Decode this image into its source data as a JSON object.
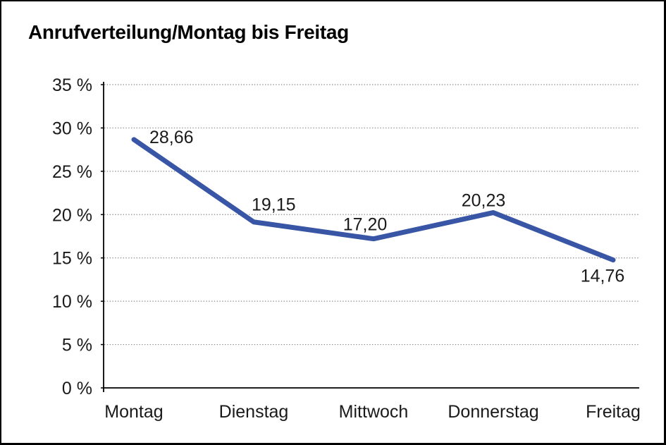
{
  "window": {
    "background_color": "#ffffff",
    "border_color": "#000000"
  },
  "chart_data": {
    "type": "line",
    "title": "Anrufverteilung/Montag bis Freitag",
    "categories": [
      "Montag",
      "Dienstag",
      "Mittwoch",
      "Donnerstag",
      "Freitag"
    ],
    "values": [
      28.66,
      19.15,
      17.2,
      20.23,
      14.76
    ],
    "value_labels": [
      "28,66",
      "19,15",
      "17,20",
      "20,23",
      "14,76"
    ],
    "ytick_values": [
      0,
      5,
      10,
      15,
      20,
      25,
      30,
      35
    ],
    "ytick_labels": [
      "0 %",
      "5 %",
      "10 %",
      "15 %",
      "20 %",
      "25 %",
      "30 %",
      "35 %"
    ],
    "ylim": [
      0,
      35
    ],
    "xlabel": "",
    "ylabel": "",
    "legend": "none",
    "grid": "horizontal-dotted",
    "line_color": "#3856A5",
    "axis_color": "#000000",
    "grid_color": "#8a8a8a",
    "text_color": "#1a1a1a"
  }
}
